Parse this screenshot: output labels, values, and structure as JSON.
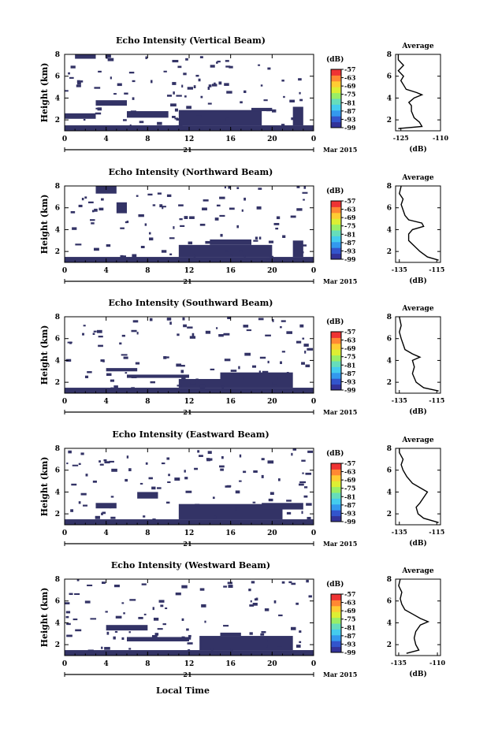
{
  "figure": {
    "xlabel": "Local Time",
    "date_label": "Mar 2015",
    "day_label": "21",
    "colors": {
      "echo_fill": "#333366",
      "colorbar": [
        "#333399",
        "#3355cc",
        "#3399ee",
        "#44ccee",
        "#66ddbb",
        "#99ee66",
        "#ddee33",
        "#ffcc33",
        "#ff8833",
        "#ee3333"
      ]
    }
  },
  "chart_data": [
    {
      "type": "heatmap",
      "title": "Echo Intensity (Vertical Beam)",
      "ylabel": "Height (km)",
      "xlim": [
        0,
        24
      ],
      "ylim": [
        1,
        8
      ],
      "xticks": [
        "0",
        "4",
        "8",
        "12",
        "16",
        "20",
        "0"
      ],
      "yticks": [
        "2",
        "4",
        "6",
        "8"
      ],
      "colorbar": {
        "unit": "(dB)",
        "ticks": [
          "-57",
          "-63",
          "-69",
          "-75",
          "-81",
          "-87",
          "-93",
          "-99"
        ]
      },
      "profile": {
        "title": "Average",
        "xlabel": "(dB)",
        "xticks": [
          "-125",
          "-110"
        ],
        "xlim": [
          -127,
          -110
        ],
        "ylim": [
          1,
          8
        ],
        "yticks": [
          "2",
          "4",
          "6",
          "8"
        ],
        "points": [
          [
            -126,
            1.2
          ],
          [
            -117,
            1.4
          ],
          [
            -118,
            1.8
          ],
          [
            -120,
            2.2
          ],
          [
            -121,
            2.8
          ],
          [
            -121,
            3.3
          ],
          [
            -122,
            3.6
          ],
          [
            -120,
            4.0
          ],
          [
            -117,
            4.3
          ],
          [
            -119,
            4.5
          ],
          [
            -123,
            4.8
          ],
          [
            -124,
            5.2
          ],
          [
            -125,
            5.6
          ],
          [
            -124,
            6.0
          ],
          [
            -126,
            6.5
          ],
          [
            -124,
            7.0
          ],
          [
            -126,
            7.5
          ],
          [
            -126,
            8.0
          ]
        ]
      },
      "echo_regions": [
        {
          "x": [
            0,
            24
          ],
          "y": [
            1.0,
            1.5
          ]
        },
        {
          "x": [
            11,
            19
          ],
          "y": [
            1.5,
            2.9
          ]
        },
        {
          "x": [
            3,
            6
          ],
          "y": [
            3.3,
            3.8
          ]
        },
        {
          "x": [
            6,
            10
          ],
          "y": [
            2.2,
            2.8
          ]
        },
        {
          "x": [
            18,
            20
          ],
          "y": [
            2.8,
            3.1
          ]
        },
        {
          "x": [
            22,
            23
          ],
          "y": [
            1.5,
            3.2
          ]
        },
        {
          "x": [
            0,
            3
          ],
          "y": [
            2.1,
            2.6
          ]
        },
        {
          "x": [
            1,
            3
          ],
          "y": [
            7.6,
            8.0
          ]
        }
      ]
    },
    {
      "type": "heatmap",
      "title": "Echo Intensity (Northward Beam)",
      "ylabel": "Height (km)",
      "xlim": [
        0,
        24
      ],
      "ylim": [
        1,
        8
      ],
      "xticks": [
        "0",
        "4",
        "8",
        "12",
        "16",
        "20",
        "0"
      ],
      "yticks": [
        "2",
        "4",
        "6",
        "8"
      ],
      "colorbar": {
        "unit": "(dB)",
        "ticks": [
          "-57",
          "-63",
          "-69",
          "-75",
          "-81",
          "-87",
          "-93",
          "-99"
        ]
      },
      "profile": {
        "title": "Average",
        "xlabel": "(dB)",
        "xticks": [
          "-135",
          "-115"
        ],
        "xlim": [
          -137,
          -113
        ],
        "ylim": [
          1,
          8
        ],
        "yticks": [
          "2",
          "4",
          "6",
          "8"
        ],
        "points": [
          [
            -114,
            1.2
          ],
          [
            -120,
            1.5
          ],
          [
            -124,
            2.0
          ],
          [
            -127,
            2.5
          ],
          [
            -130,
            3.0
          ],
          [
            -130,
            3.6
          ],
          [
            -128,
            4.0
          ],
          [
            -122,
            4.3
          ],
          [
            -123,
            4.6
          ],
          [
            -130,
            4.9
          ],
          [
            -132,
            5.3
          ],
          [
            -133,
            5.8
          ],
          [
            -134,
            6.3
          ],
          [
            -133,
            6.8
          ],
          [
            -135,
            7.3
          ],
          [
            -134,
            8.0
          ]
        ]
      },
      "echo_regions": [
        {
          "x": [
            0,
            24
          ],
          "y": [
            1.0,
            1.5
          ]
        },
        {
          "x": [
            11,
            20
          ],
          "y": [
            1.5,
            2.6
          ]
        },
        {
          "x": [
            14,
            18
          ],
          "y": [
            2.6,
            3.1
          ]
        },
        {
          "x": [
            22,
            23
          ],
          "y": [
            1.5,
            3.0
          ]
        },
        {
          "x": [
            3,
            5
          ],
          "y": [
            7.3,
            8.0
          ]
        },
        {
          "x": [
            5,
            6
          ],
          "y": [
            5.5,
            6.5
          ]
        }
      ]
    },
    {
      "type": "heatmap",
      "title": "Echo Intensity (Southward Beam)",
      "ylabel": "Height (km)",
      "xlim": [
        0,
        24
      ],
      "ylim": [
        1,
        8
      ],
      "xticks": [
        "0",
        "4",
        "8",
        "12",
        "16",
        "20",
        "0"
      ],
      "yticks": [
        "2",
        "4",
        "6",
        "8"
      ],
      "colorbar": {
        "unit": "(dB)",
        "ticks": [
          "-57",
          "-63",
          "-69",
          "-75",
          "-81",
          "-87",
          "-93",
          "-99"
        ]
      },
      "profile": {
        "title": "Average",
        "xlabel": "(dB)",
        "xticks": [
          "-135",
          "-115"
        ],
        "xlim": [
          -137,
          -113
        ],
        "ylim": [
          1,
          8
        ],
        "yticks": [
          "2",
          "4",
          "6",
          "8"
        ],
        "points": [
          [
            -114,
            1.2
          ],
          [
            -122,
            1.5
          ],
          [
            -126,
            2.0
          ],
          [
            -128,
            2.8
          ],
          [
            -127,
            3.4
          ],
          [
            -128,
            4.0
          ],
          [
            -124,
            4.3
          ],
          [
            -128,
            4.6
          ],
          [
            -132,
            5.0
          ],
          [
            -133,
            5.5
          ],
          [
            -134,
            6.0
          ],
          [
            -135,
            6.6
          ],
          [
            -134,
            7.2
          ],
          [
            -135,
            8.0
          ]
        ]
      },
      "echo_regions": [
        {
          "x": [
            0,
            24
          ],
          "y": [
            1.0,
            1.5
          ]
        },
        {
          "x": [
            15,
            22
          ],
          "y": [
            1.5,
            2.9
          ]
        },
        {
          "x": [
            11,
            15
          ],
          "y": [
            1.5,
            2.3
          ]
        },
        {
          "x": [
            4,
            7
          ],
          "y": [
            3.0,
            3.3
          ]
        },
        {
          "x": [
            6,
            12
          ],
          "y": [
            2.4,
            2.7
          ]
        }
      ]
    },
    {
      "type": "heatmap",
      "title": "Echo Intensity (Eastward Beam)",
      "ylabel": "Height (km)",
      "xlim": [
        0,
        24
      ],
      "ylim": [
        1,
        8
      ],
      "xticks": [
        "0",
        "4",
        "8",
        "12",
        "16",
        "20",
        "0"
      ],
      "yticks": [
        "2",
        "4",
        "6",
        "8"
      ],
      "colorbar": {
        "unit": "(dB)",
        "ticks": [
          "-57",
          "-63",
          "-69",
          "-75",
          "-81",
          "-87",
          "-93",
          "-99"
        ]
      },
      "profile": {
        "title": "Average",
        "xlabel": "(dB)",
        "xticks": [
          "-135",
          "-115"
        ],
        "xlim": [
          -137,
          -113
        ],
        "ylim": [
          1,
          8
        ],
        "yticks": [
          "2",
          "4",
          "6",
          "8"
        ],
        "points": [
          [
            -114,
            1.2
          ],
          [
            -122,
            1.6
          ],
          [
            -125,
            2.0
          ],
          [
            -126,
            2.6
          ],
          [
            -124,
            3.0
          ],
          [
            -122,
            3.5
          ],
          [
            -120,
            4.0
          ],
          [
            -124,
            4.4
          ],
          [
            -128,
            4.8
          ],
          [
            -131,
            5.4
          ],
          [
            -133,
            6.0
          ],
          [
            -134,
            6.5
          ],
          [
            -133,
            7.0
          ],
          [
            -135,
            7.6
          ],
          [
            -135,
            8.0
          ]
        ]
      },
      "echo_regions": [
        {
          "x": [
            0,
            24
          ],
          "y": [
            1.0,
            1.5
          ]
        },
        {
          "x": [
            11,
            21
          ],
          "y": [
            1.5,
            2.9
          ]
        },
        {
          "x": [
            19,
            23
          ],
          "y": [
            2.4,
            3.0
          ]
        },
        {
          "x": [
            7,
            9
          ],
          "y": [
            3.4,
            4.0
          ]
        },
        {
          "x": [
            3,
            5
          ],
          "y": [
            2.5,
            3.0
          ]
        }
      ]
    },
    {
      "type": "heatmap",
      "title": "Echo Intensity (Westward Beam)",
      "ylabel": "Height (km)",
      "xlim": [
        0,
        24
      ],
      "ylim": [
        1,
        8
      ],
      "xticks": [
        "0",
        "4",
        "8",
        "12",
        "16",
        "20",
        "0"
      ],
      "yticks": [
        "2",
        "4",
        "6",
        "8"
      ],
      "colorbar": {
        "unit": "(dB)",
        "ticks": [
          "-57",
          "-63",
          "-69",
          "-75",
          "-81",
          "-87",
          "-93",
          "-99"
        ]
      },
      "profile": {
        "title": "Average",
        "xlabel": "(dB)",
        "xticks": [
          "-135",
          "-110"
        ],
        "xlim": [
          -137,
          -108
        ],
        "ylim": [
          1,
          8
        ],
        "yticks": [
          "2",
          "4",
          "6",
          "8"
        ],
        "points": [
          [
            -130,
            1.2
          ],
          [
            -122,
            1.5
          ],
          [
            -124,
            2.0
          ],
          [
            -125,
            2.6
          ],
          [
            -124,
            3.2
          ],
          [
            -121,
            3.8
          ],
          [
            -116,
            4.1
          ],
          [
            -121,
            4.4
          ],
          [
            -126,
            4.8
          ],
          [
            -131,
            5.2
          ],
          [
            -133,
            5.7
          ],
          [
            -134,
            6.2
          ],
          [
            -133,
            6.8
          ],
          [
            -135,
            7.4
          ],
          [
            -134,
            8.0
          ]
        ]
      },
      "echo_regions": [
        {
          "x": [
            0,
            24
          ],
          "y": [
            1.0,
            1.5
          ]
        },
        {
          "x": [
            13,
            22
          ],
          "y": [
            1.5,
            2.8
          ]
        },
        {
          "x": [
            6,
            12
          ],
          "y": [
            2.3,
            2.7
          ]
        },
        {
          "x": [
            4,
            8
          ],
          "y": [
            3.3,
            3.8
          ]
        },
        {
          "x": [
            15,
            17
          ],
          "y": [
            2.8,
            3.1
          ]
        }
      ]
    }
  ]
}
